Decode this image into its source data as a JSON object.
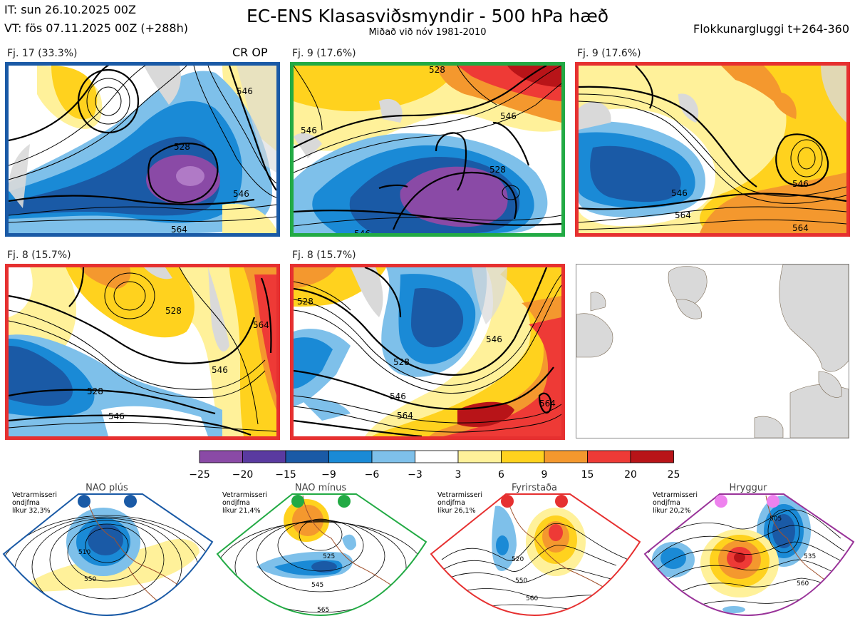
{
  "header": {
    "init_time": "IT: sun 26.10.2025 00Z",
    "valid_time": "VT: fös 07.11.2025 00Z  (+288h)",
    "title": "EC-ENS Klasasviðsmyndir - 500 hPa hæð",
    "subtitle": "Miðað við nóv 1981-2010",
    "window": "Flokkunargluggi t+264-360"
  },
  "clusters": [
    {
      "label": "Fj. 17 (33.3%)",
      "extra": "CR OP",
      "border": "#1a5aa6",
      "contours": [
        "528",
        "546",
        "546",
        "564"
      ]
    },
    {
      "label": "Fj. 9 (17.6%)",
      "border": "#22aa44",
      "contours": [
        "528",
        "546",
        "528",
        "546",
        "546"
      ]
    },
    {
      "label": "Fj. 9 (17.6%)",
      "border": "#e63030",
      "contours": [
        "546",
        "546",
        "564",
        "564"
      ]
    },
    {
      "label": "Fj. 8 (15.7%)",
      "border": "#e63030",
      "contours": [
        "528",
        "528",
        "546",
        "546",
        "564"
      ]
    },
    {
      "label": "Fj. 8 (15.7%)",
      "border": "#e63030",
      "contours": [
        "528",
        "528",
        "546",
        "546",
        "564",
        "564"
      ]
    }
  ],
  "colorbar": {
    "ticks": [
      "−25",
      "−20",
      "−15",
      "−9",
      "−6",
      "−3",
      "3",
      "6",
      "9",
      "15",
      "20",
      "25"
    ],
    "colors": [
      "#8a4aa6",
      "#5a3aa0",
      "#1a5aa6",
      "#1a8ad6",
      "#7ec0ea",
      "#ffffff",
      "#fff19a",
      "#ffd21e",
      "#f4982e",
      "#ee3a36",
      "#b81418"
    ]
  },
  "regimes": [
    {
      "name": "NAO plús",
      "note1": "Vetrarmisseri",
      "note2": "ondjfma",
      "note3": "líkur 32,3%",
      "color": "#1a5aa6",
      "contours": [
        "510",
        "550"
      ]
    },
    {
      "name": "NAO mínus",
      "note1": "Vetrarmisseri",
      "note2": "ondjfma",
      "note3": "líkur 21,4%",
      "color": "#22aa44",
      "contours": [
        "525",
        "545",
        "565"
      ]
    },
    {
      "name": "Fyrirstaða",
      "note1": "Vetrarmisseri",
      "note2": "ondjfma",
      "note3": "líkur 26,1%",
      "color": "#e63030",
      "contours": [
        "520",
        "550",
        "560"
      ]
    },
    {
      "name": "Hryggur",
      "note1": "Vetrarmisseri",
      "note2": "ondjfma",
      "note3": "líkur 20,2%",
      "color": "#993399",
      "contours": [
        "505",
        "535",
        "560"
      ]
    }
  ]
}
